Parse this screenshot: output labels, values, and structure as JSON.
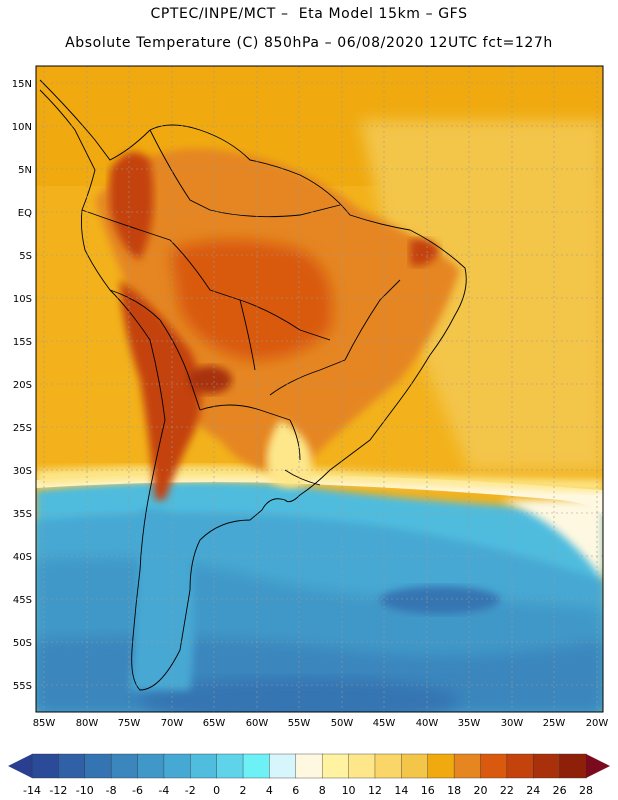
{
  "header": {
    "line1": "CPTEC/INPE/MCT –  Eta Model 15km – GFS",
    "line2": "Absolute Temperature (C) 850hPa – 06/08/2020 12UTC fct=127h"
  },
  "map": {
    "region": "South America",
    "lat_labels": [
      "15N",
      "10N",
      "5N",
      "EQ",
      "5S",
      "10S",
      "15S",
      "20S",
      "25S",
      "30S",
      "35S",
      "40S",
      "45S",
      "50S",
      "55S"
    ],
    "lon_labels": [
      "85W",
      "80W",
      "75W",
      "70W",
      "65W",
      "60W",
      "55W",
      "50W",
      "45W",
      "40W",
      "35W",
      "30W",
      "25W",
      "20W"
    ]
  },
  "colorbar": {
    "labels": [
      "-14",
      "-12",
      "-10",
      "-8",
      "-6",
      "-4",
      "-2",
      "0",
      "2",
      "4",
      "6",
      "8",
      "10",
      "12",
      "14",
      "16",
      "18",
      "20",
      "22",
      "24",
      "26",
      "28"
    ],
    "low_color": "#2a3f8f",
    "high_color": "#7a0a1e",
    "colors": [
      "#2b4a97",
      "#3060a6",
      "#3574b2",
      "#3a86bd",
      "#3f98c8",
      "#46a9d3",
      "#50bcde",
      "#5fd3ea",
      "#6df0f6",
      "#d6f6fb",
      "#fff8e0",
      "#fff2a0",
      "#fde78a",
      "#f9d667",
      "#f3c548",
      "#f0aa10",
      "#e58620",
      "#d95a0e",
      "#c4420b",
      "#a8300a",
      "#8e200a"
    ]
  }
}
